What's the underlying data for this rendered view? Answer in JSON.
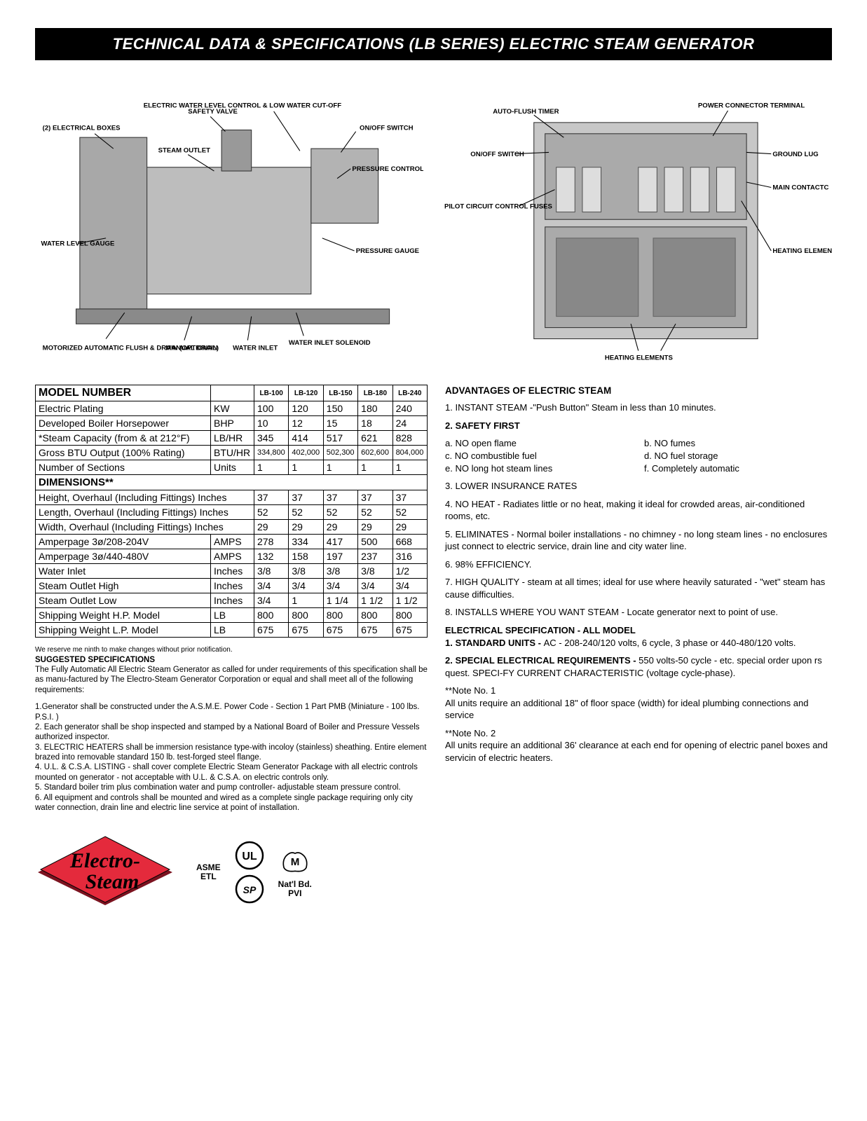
{
  "header": {
    "title": "TECHNICAL DATA & SPECIFICATIONS (LB SERIES) ELECTRIC STEAM GENERATOR"
  },
  "diagram_left": {
    "labels": {
      "electrical_boxes": "(2) ELECTRICAL BOXES",
      "safety_valve": "SAFETY VALVE",
      "steam_outlet": "STEAM OUTLET",
      "water_level_control": "ELECTRIC WATER LEVEL CONTROL & LOW WATER CUT-OFF",
      "on_off_switch": "ON/OFF SWITCH",
      "pressure_controls": "PRESSURE CONTROLS",
      "water_level_gauge": "WATER LEVEL GAUGE",
      "pressure_gauge": "PRESSURE GAUGE",
      "motorized_flush": "MOTORIZED AUTOMATIC FLUSH & DRAIN (OPTIONAL)",
      "manual_drain": "MANUAL DRAIN",
      "water_inlet": "WATER INLET",
      "water_inlet_solenoid": "WATER INLET SOLENOID"
    }
  },
  "diagram_right": {
    "labels": {
      "auto_flush_timer": "AUTO-FLUSH TIMER",
      "on_off_switch": "ON/OFF SWITCH",
      "pilot_fuses": "PILOT CIRCUIT CONTROL FUSES",
      "power_connector": "POWER CONNECTOR TERMINAL",
      "ground_lug": "GROUND LUG",
      "main_contactc": "MAIN CONTACTC",
      "heating_element_fuses": "HEATING ELEMEN FUSES",
      "heating_elements": "HEATING ELEMENTS"
    }
  },
  "table": {
    "model_header": "MODEL NUMBER",
    "models": [
      "LB-100",
      "LB-120",
      "LB-150",
      "LB-180",
      "LB-240"
    ],
    "rows": [
      {
        "label": "Electric Plating",
        "unit": "KW",
        "vals": [
          "100",
          "120",
          "150",
          "180",
          "240"
        ]
      },
      {
        "label": "Developed Boiler Horsepower",
        "unit": "BHP",
        "vals": [
          "10",
          "12",
          "15",
          "18",
          "24"
        ]
      },
      {
        "label": "*Steam Capacity (from & at 212°F)",
        "unit": "LB/HR",
        "vals": [
          "345",
          "414",
          "517",
          "621",
          "828"
        ]
      },
      {
        "label": "Gross BTU Output (100% Rating)",
        "unit": "BTU/HR",
        "vals": [
          "334,800",
          "402,000",
          "502,300",
          "602,600",
          "804,000"
        ],
        "small": true
      },
      {
        "label": "Number of Sections",
        "unit": "Units",
        "vals": [
          "1",
          "1",
          "1",
          "1",
          "1"
        ]
      }
    ],
    "dim_header": "DIMENSIONS**",
    "dim_rows": [
      {
        "label": "Height, Overhaul (Including Fittings) Inches",
        "unit": "",
        "vals": [
          "37",
          "37",
          "37",
          "37",
          "37"
        ]
      },
      {
        "label": "Length, Overhaul (Including Fittings) Inches",
        "unit": "",
        "vals": [
          "52",
          "52",
          "52",
          "52",
          "52"
        ]
      },
      {
        "label": "Width, Overhaul (Including Fittings) Inches",
        "unit": "",
        "vals": [
          "29",
          "29",
          "29",
          "29",
          "29"
        ]
      },
      {
        "label": "Amperpage 3ø/208-204V",
        "unit": "AMPS",
        "vals": [
          "278",
          "334",
          "417",
          "500",
          "668"
        ]
      },
      {
        "label": "Amperpage 3ø/440-480V",
        "unit": "AMPS",
        "vals": [
          "132",
          "158",
          "197",
          "237",
          "316"
        ]
      },
      {
        "label": "Water Inlet",
        "unit": "Inches",
        "vals": [
          "3/8",
          "3/8",
          "3/8",
          "3/8",
          "1/2"
        ]
      },
      {
        "label": "Steam Outlet High",
        "unit": "Inches",
        "vals": [
          "3/4",
          "3/4",
          "3/4",
          "3/4",
          "3/4"
        ]
      },
      {
        "label": "Steam Outlet Low",
        "unit": "Inches",
        "vals": [
          "3/4",
          "1",
          "1 1/4",
          "1 1/2",
          "1 1/2"
        ]
      },
      {
        "label": "Shipping Weight H.P. Model",
        "unit": "LB",
        "vals": [
          "800",
          "800",
          "800",
          "800",
          "800"
        ]
      },
      {
        "label": "Shipping Weight L.P. Model",
        "unit": "LB",
        "vals": [
          "675",
          "675",
          "675",
          "675",
          "675"
        ]
      }
    ]
  },
  "suggested": {
    "reserve": "We reserve me ninth to make changes without prior notification.",
    "heading": "SUGGESTED SPECIFICATIONS",
    "intro": "The Fully Automatic All Electric Steam Generator as called for under requirements of this specification shall be as manu-factured by The Electro-Steam Generator Corporation or equal and shall meet all of the following requirements:",
    "items": [
      "1.Generator shall be constructed under the A.S.M.E. Power Code - Section 1 Part PMB (Miniature -  100 lbs. P.S.I. )",
      "2. Each generator shall be shop inspected and stamped by a National Board of Boiler and Pressure Vessels authorized inspector.",
      "3. ELECTRIC HEATERS shall be immersion resistance type-with incoloy (stainless) sheathing. Entire element brazed into removable standard 150 lb. test-forged steel flange.",
      "4. U.L. & C.S.A. LISTING - shall cover complete Electric Steam Generator Package with all electric controls mounted on generator - not acceptable with U.L. & C.S.A. on electric controls only.",
      "5. Standard boiler trim plus combination water and pump controller- adjustable steam pressure control.",
      "6. All equipment and controls shall be mounted and wired as a complete single package requiring only city water connection, drain line and electric line service at point of installation."
    ]
  },
  "advantages": {
    "heading": "ADVANTAGES OF ELECTRIC STEAM",
    "p1": "1. INSTANT STEAM -\"Push Button\" Steam in less than 10 minutes.",
    "safety_title": "2. SAFETY FIRST",
    "safety_items": {
      "a": "a. NO open flame",
      "b": "b. NO fumes",
      "c": "c. NO combustible fuel",
      "d": "d. NO fuel storage",
      "e": "e. NO long hot steam lines",
      "f": "f. Completely automatic"
    },
    "p3": "3. LOWER INSURANCE RATES",
    "p4": "4. NO HEAT - Radiates little or no heat, making it ideal for crowded areas, air-conditioned rooms, etc.",
    "p5": "5. ELIMINATES - Normal boiler installations - no chimney - no long steam lines - no enclosures just connect to electric service, drain line and city water line.",
    "p6": "6. 98% EFFICIENCY.",
    "p7": "7. HIGH QUALITY - steam at all times; ideal for use where heavily saturated - \"wet\" steam has cause difficulties.",
    "p8": "8. INSTALLS WHERE YOU WANT STEAM - Locate generator next to point of use.",
    "elec_heading": "ELECTRICAL SPECIFICATION - ALL MODEL",
    "elec_1_title": "1. STANDARD UNITS - ",
    "elec_1_text": "AC - 208-240/120 volts, 6 cycle, 3 phase or 440-480/120 volts.",
    "elec_2_title": "2. SPECIAL ELECTRICAL REQUIREMENTS - ",
    "elec_2_text": "550 volts-50 cycle - etc. special order upon rs quest. SPECI-FY CURRENT CHARACTERISTIC (voltage cycle-phase).",
    "note1_title": "**Note No. 1",
    "note1_text": "All units require an additional 18\" of floor space (width) for ideal plumbing connections and service",
    "note2_title": "**Note No. 2",
    "note2_text": "All units require an additional 36' clearance at each end for opening of electric panel boxes and servicin of electric heaters."
  },
  "certs": {
    "logo_top": "Electro-",
    "logo_bottom": "Steam",
    "asme": "ASME",
    "etl": "ETL",
    "natl": "Nat'l Bd.",
    "pvi": "PVI"
  },
  "colors": {
    "logo_red": "#e42a3c",
    "logo_shadow": "#7c1320"
  }
}
